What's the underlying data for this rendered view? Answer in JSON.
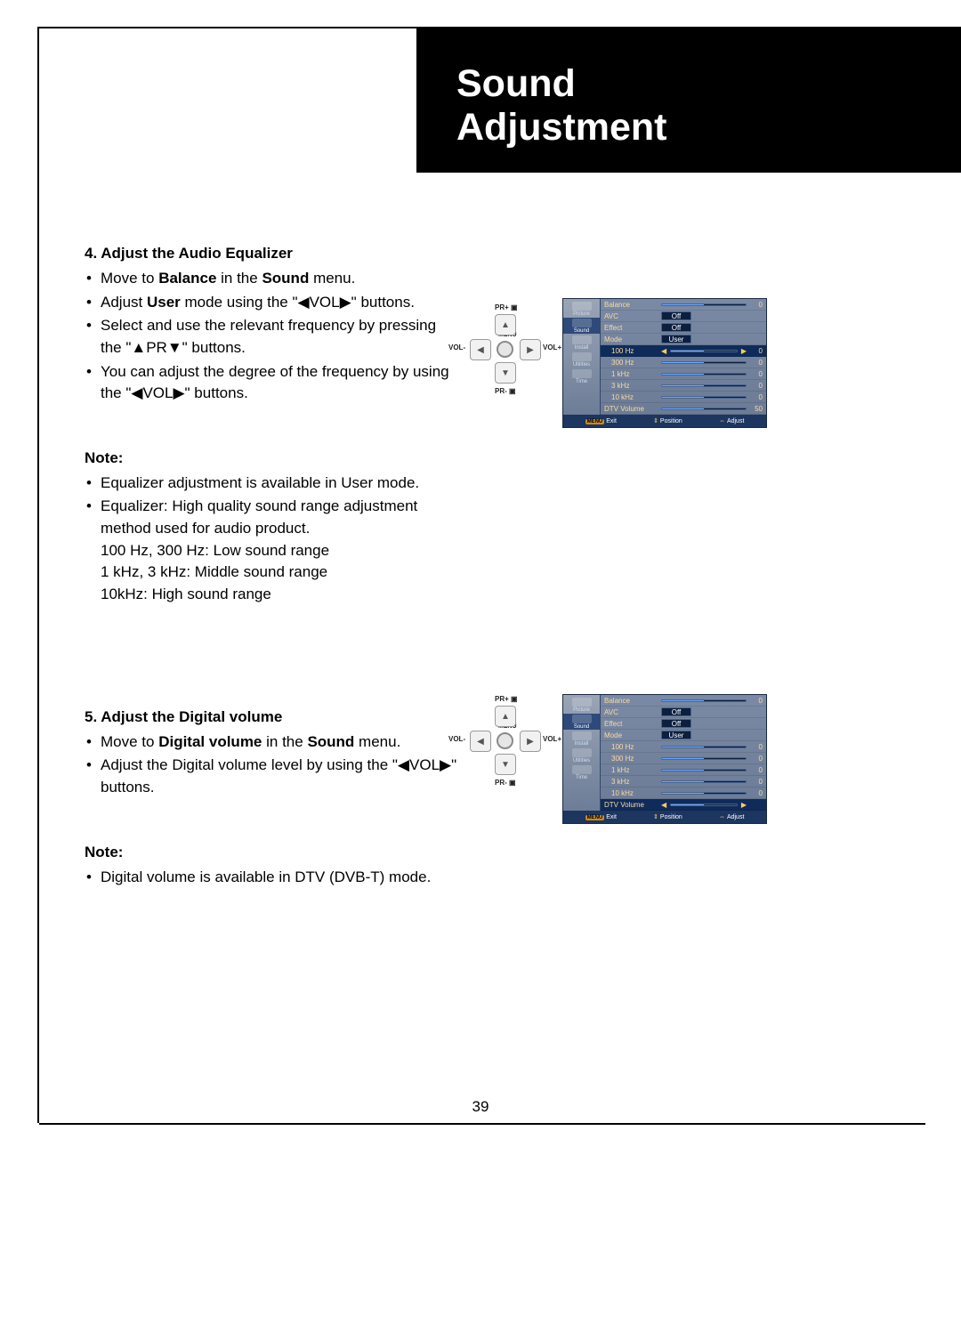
{
  "title": {
    "line1": "Sound",
    "line2": "Adjustment"
  },
  "page_number": "39",
  "section4": {
    "heading": "4. Adjust the Audio Equalizer",
    "bullets": [
      {
        "pre": "Move to ",
        "b1": "Balance",
        "mid": " in the ",
        "b2": "Sound",
        "post": " menu."
      },
      {
        "pre": "Adjust ",
        "b1": "User",
        "mid": " mode using the \"◀VOL▶\" buttons.",
        "b2": "",
        "post": ""
      },
      {
        "pre": "Select and use the relevant frequency by pressing the \"▲PR▼\" buttons.",
        "b1": "",
        "mid": "",
        "b2": "",
        "post": ""
      },
      {
        "pre": "You can adjust the degree of the frequency by using the \"◀VOL▶\" buttons.",
        "b1": "",
        "mid": "",
        "b2": "",
        "post": ""
      }
    ],
    "note_label": "Note:",
    "notes": [
      "Equalizer adjustment is available in User mode.",
      "Equalizer: High quality sound range adjustment method used for audio product.\n100 Hz, 300 Hz: Low sound range\n1 kHz, 3 kHz: Middle sound range\n10kHz: High sound range"
    ]
  },
  "section5": {
    "heading": "5. Adjust the Digital volume",
    "bullets": [
      {
        "pre": "Move to ",
        "b1": "Digital volume",
        "mid": " in the ",
        "b2": "Sound",
        "post": " menu."
      },
      {
        "pre": "Adjust the Digital volume level by using the \"◀VOL▶\" buttons.",
        "b1": "",
        "mid": "",
        "b2": "",
        "post": ""
      }
    ],
    "note_label": "Note:",
    "notes": [
      "Digital volume is available in DTV (DVB-T) mode."
    ]
  },
  "remote_labels": {
    "top": "PR+ ▣",
    "bottom": "PR- ▣",
    "left": "VOL-",
    "right": "VOL+",
    "menu": "MENU"
  },
  "osd_common": {
    "sidebar": [
      "Picture",
      "Sound",
      "Install",
      "Utilities",
      "Time"
    ],
    "footer": {
      "exit": "Exit",
      "position": "Position",
      "adjust": "Adjust",
      "menu_badge": "MENU"
    },
    "colors": {
      "label": "#fcd9a0",
      "selected_bg": "#0f2b5a",
      "footer_bg": "#1c3660",
      "slider_fill": "#6aa8ff",
      "badge_bg": "#d08a1a"
    }
  },
  "osd1": {
    "selected_row": "100 Hz",
    "active_tab": "Sound",
    "rows": [
      {
        "label": "Balance",
        "type": "slider",
        "fill": 50,
        "num": "0"
      },
      {
        "label": "AVC",
        "type": "box",
        "val": "Off"
      },
      {
        "label": "Effect",
        "type": "box",
        "val": "Off"
      },
      {
        "label": "Mode",
        "type": "box",
        "val": "User"
      },
      {
        "label": "100 Hz",
        "type": "slider-sel",
        "fill": 50,
        "num": "0",
        "indent": true
      },
      {
        "label": "300 Hz",
        "type": "slider",
        "fill": 50,
        "num": "0",
        "indent": true
      },
      {
        "label": "1 kHz",
        "type": "slider",
        "fill": 50,
        "num": "0",
        "indent": true
      },
      {
        "label": "3 kHz",
        "type": "slider",
        "fill": 50,
        "num": "0",
        "indent": true
      },
      {
        "label": "10 kHz",
        "type": "slider",
        "fill": 50,
        "num": "0",
        "indent": true
      },
      {
        "label": "DTV Volume",
        "type": "slider",
        "fill": 50,
        "num": "50"
      }
    ]
  },
  "osd2": {
    "selected_row": "DTV Volume",
    "active_tab": "Sound",
    "rows": [
      {
        "label": "Balance",
        "type": "slider",
        "fill": 50,
        "num": "0"
      },
      {
        "label": "AVC",
        "type": "box",
        "val": "Off"
      },
      {
        "label": "Effect",
        "type": "box",
        "val": "Off"
      },
      {
        "label": "Mode",
        "type": "box",
        "val": "User"
      },
      {
        "label": "100 Hz",
        "type": "slider",
        "fill": 50,
        "num": "0",
        "indent": true
      },
      {
        "label": "300 Hz",
        "type": "slider",
        "fill": 50,
        "num": "0",
        "indent": true
      },
      {
        "label": "1 kHz",
        "type": "slider",
        "fill": 50,
        "num": "0",
        "indent": true
      },
      {
        "label": "3 kHz",
        "type": "slider",
        "fill": 50,
        "num": "0",
        "indent": true
      },
      {
        "label": "10 kHz",
        "type": "slider",
        "fill": 50,
        "num": "0",
        "indent": true
      },
      {
        "label": "DTV Volume",
        "type": "slider-sel",
        "fill": 50,
        "num": ""
      }
    ]
  }
}
